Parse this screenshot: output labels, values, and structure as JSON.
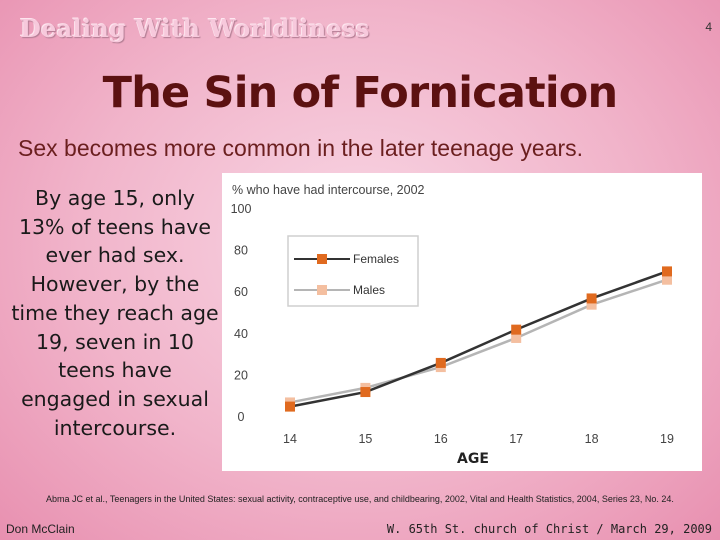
{
  "header": {
    "section_title": "Dealing With Worldliness",
    "page_number": "4"
  },
  "slide": {
    "title": "The Sin of Fornication",
    "subtitle": "Sex becomes more common in the later teenage years.",
    "body": "By age 15, only 13% of teens have ever had sex. However, by the time they reach age 19, seven in 10 teens have engaged in sexual intercourse."
  },
  "chart_data": {
    "type": "line",
    "title": "% who have had intercourse, 2002",
    "xlabel": "AGE",
    "ylabel": "",
    "categories": [
      "14",
      "15",
      "16",
      "17",
      "18",
      "19"
    ],
    "yticks": [
      "0",
      "20",
      "40",
      "60",
      "80",
      "100"
    ],
    "ylim": [
      0,
      100
    ],
    "grid": false,
    "legend_position": "top-left",
    "series": [
      {
        "name": "Females",
        "values": [
          5,
          12,
          26,
          42,
          57,
          70
        ],
        "color": "#e06a1f",
        "line_color": "#333333"
      },
      {
        "name": "Males",
        "values": [
          7,
          14,
          24,
          38,
          54,
          66
        ],
        "color": "#f4bfa0",
        "line_color": "#b5b5b5"
      }
    ]
  },
  "footer": {
    "citation": "Abma JC et al., Teenagers in the United States: sexual activity, contraceptive use, and childbearing, 2002, Vital and Health Statistics, 2004, Series 23, No. 24.",
    "author": "Don McClain",
    "location_date": "W. 65th St. church of Christ / March 29, 2009"
  }
}
